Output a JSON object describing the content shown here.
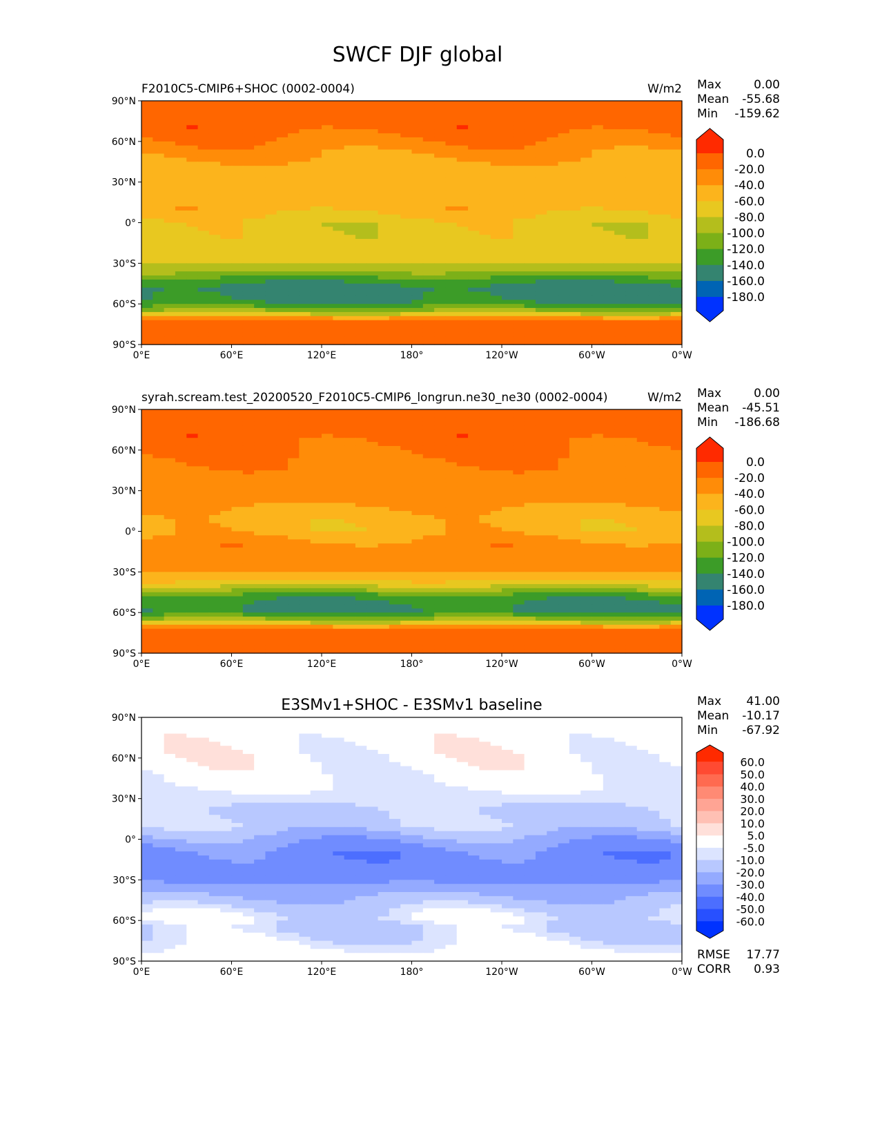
{
  "chart_data": {
    "type": "heatmap",
    "title": "SWCF DJF global",
    "xticks": [
      "0°E",
      "60°E",
      "120°E",
      "180°",
      "120°W",
      "60°W",
      "0°W"
    ],
    "yticks": [
      "90°N",
      "60°N",
      "30°N",
      "0°",
      "30°S",
      "60°S",
      "90°S"
    ],
    "panels": [
      {
        "title_left": "F2010C5-CMIP6+SHOC (0002-0004)",
        "title_center": "",
        "units": "W/m2",
        "stats": [
          [
            "Max",
            "0.00"
          ],
          [
            "Mean",
            "-55.68"
          ],
          [
            "Min",
            "-159.62"
          ]
        ],
        "levels": [
          "0.0",
          "-20.0",
          "-40.0",
          "-60.0",
          "-80.0",
          "-100.0",
          "-120.0",
          "-140.0",
          "-160.0",
          "-180.0"
        ],
        "colors": [
          "#ff2a00",
          "#ff6600",
          "#ff8c08",
          "#fcb41c",
          "#e8c820",
          "#b4be1c",
          "#7cb018",
          "#3c9c28",
          "#348470",
          "#0064b4",
          "#0032ff"
        ],
        "zonal_profile": {
          "lat": [
            90,
            70,
            55,
            40,
            25,
            10,
            0,
            -10,
            -25,
            -35,
            -42,
            -48,
            -58,
            -64,
            -68,
            -72,
            -90
          ],
          "value": [
            -10,
            -10,
            -30,
            -50,
            -50,
            -50,
            -70,
            -70,
            -70,
            -90,
            -130,
            -150,
            -145,
            -110,
            -70,
            -10,
            -10
          ]
        }
      },
      {
        "title_left": "syrah.scream.test_20200520_F2010C5-CMIP6_longrun.ne30_ne30 (0002-0004)",
        "title_center": "",
        "units": "W/m2",
        "stats": [
          [
            "Max",
            "0.00"
          ],
          [
            "Mean",
            "-45.51"
          ],
          [
            "Min",
            "-186.68"
          ]
        ],
        "levels": [
          "0.0",
          "-20.0",
          "-40.0",
          "-60.0",
          "-80.0",
          "-100.0",
          "-120.0",
          "-140.0",
          "-160.0",
          "-180.0"
        ],
        "colors": [
          "#ff2a00",
          "#ff6600",
          "#ff8c08",
          "#fcb41c",
          "#e8c820",
          "#b4be1c",
          "#7cb018",
          "#3c9c28",
          "#348470",
          "#0064b4",
          "#0032ff"
        ],
        "zonal_profile": {
          "lat": [
            90,
            70,
            55,
            40,
            25,
            10,
            0,
            -10,
            -25,
            -35,
            -42,
            -48,
            -58,
            -64,
            -68,
            -72,
            -90
          ],
          "value": [
            -10,
            -10,
            -20,
            -30,
            -30,
            -50,
            -50,
            -30,
            -30,
            -50,
            -90,
            -130,
            -150,
            -110,
            -70,
            -10,
            -10
          ]
        }
      },
      {
        "title_left": "",
        "title_center": "E3SMv1+SHOC - E3SMv1 baseline",
        "units": "",
        "stats": [
          [
            "Max",
            "41.00"
          ],
          [
            "Mean",
            "-10.17"
          ],
          [
            "Min",
            "-67.92"
          ]
        ],
        "extra_stats": [
          [
            "RMSE",
            "17.77"
          ],
          [
            "CORR",
            "0.93"
          ]
        ],
        "levels": [
          "60.0",
          "50.0",
          "40.0",
          "30.0",
          "20.0",
          "10.0",
          "5.0",
          "-5.0",
          "-10.0",
          "-20.0",
          "-30.0",
          "-40.0",
          "-50.0",
          "-60.0"
        ],
        "colors": [
          "#ff2a00",
          "#ff4a32",
          "#ff6a50",
          "#ff8a74",
          "#ffa494",
          "#ffc0b4",
          "#ffe0da",
          "#ffffff",
          "#dce4ff",
          "#b8c8ff",
          "#94aaff",
          "#708cff",
          "#4c6eff",
          "#2850ff",
          "#0032ff"
        ],
        "zonal_profile": {
          "lat": [
            90,
            60,
            40,
            30,
            20,
            10,
            0,
            -10,
            -20,
            -30,
            -40,
            -50,
            -58,
            -65,
            -90
          ],
          "value": [
            0,
            0,
            -4,
            -8,
            -12,
            -12,
            -25,
            -35,
            -35,
            -32,
            -22,
            -12,
            -6,
            -12,
            0
          ]
        }
      }
    ]
  }
}
